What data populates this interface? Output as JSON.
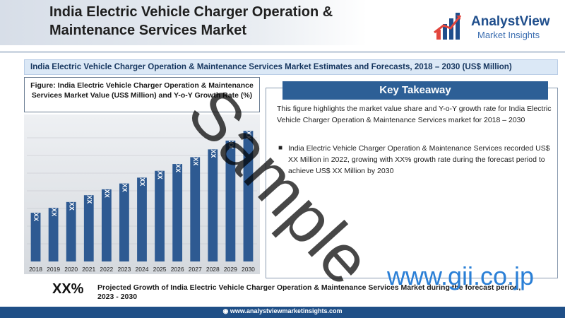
{
  "header": {
    "title": "India Electric Vehicle Charger Operation & Maintenance Services Market",
    "logo_name": "AnalystView",
    "logo_sub": "Market Insights"
  },
  "banner": "India Electric Vehicle Charger Operation & Maintenance Services Market Estimates and Forecasts, 2018 – 2030 (US$ Million)",
  "figure_caption": "Figure: India Electric Vehicle Charger Operation & Maintenance Services Market Value (US$ Million) and Y-o-Y Growth Rate (%)",
  "key_takeaway": {
    "heading": "Key Takeaway",
    "description": "This figure highlights the market value share and Y-o-Y growth rate for India Electric Vehicle Charger Operation & Maintenance Services market for 2018 – 2030",
    "bullet": "India Electric Vehicle Charger Operation & Maintenance Services recorded US$ XX Million in 2022, growing with XX% growth rate during the forecast period to achieve US$ XX Million by 2030"
  },
  "growth": {
    "value": "XX%",
    "text": "Projected Growth of India Electric Vehicle Charger Operation & Maintenance Services Market during the forecast period, 2023 - 2030"
  },
  "footer": "www.analystviewmarketinsights.com",
  "watermarks": {
    "sample": "Sample",
    "site": "www.gii.co.jp"
  },
  "colors": {
    "bar": "#2e5a92",
    "header_band": "#d7dee8",
    "takeaway": "#2d5f96",
    "footer": "#1f4f87"
  },
  "chart_data": {
    "type": "bar",
    "categories": [
      "2018",
      "2019",
      "2020",
      "2021",
      "2022",
      "2023",
      "2024",
      "2025",
      "2026",
      "2027",
      "2028",
      "2029",
      "2030"
    ],
    "values": [
      1.0,
      1.1,
      1.22,
      1.36,
      1.48,
      1.6,
      1.72,
      1.86,
      2.0,
      2.14,
      2.3,
      2.48,
      2.68
    ],
    "data_labels": [
      "XX",
      "XX",
      "XX",
      "XX",
      "XX",
      "XX",
      "XX",
      "XX",
      "XX",
      "XX",
      "XX",
      "XX",
      "XX"
    ],
    "title": "",
    "xlabel": "",
    "ylabel": "",
    "ylim": [
      0,
      2.9
    ],
    "grid": true
  }
}
